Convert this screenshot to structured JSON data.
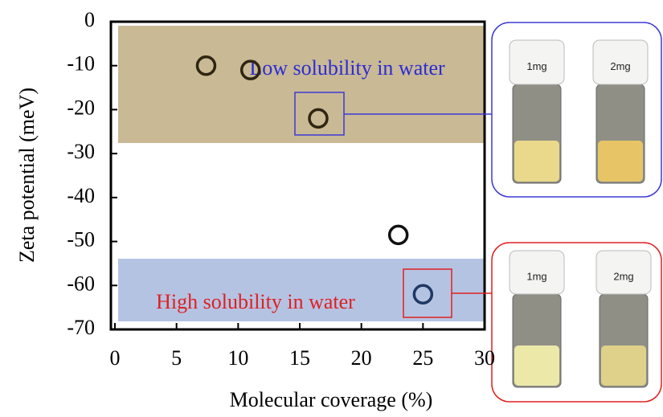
{
  "chart_data": {
    "type": "scatter",
    "x_label": "Molecular coverage (%)",
    "y_label": "Zeta potential (meV)",
    "series": [
      {
        "x": [
          7.4,
          11,
          16.5,
          23,
          25
        ],
        "values": [
          -10,
          -11,
          -22,
          -48.5,
          -62
        ],
        "colors": [
          "#2e2512",
          "#2e2512",
          "#2e2512",
          "#111111",
          "#1f3864"
        ]
      }
    ],
    "xlim": [
      0,
      30
    ],
    "xticks": [
      0,
      5,
      10,
      15,
      20,
      25,
      30
    ],
    "ylim": [
      -70,
      0
    ],
    "yticks": [
      0,
      -10,
      -20,
      -30,
      -40,
      -50,
      -60,
      -70
    ],
    "annotations": [
      {
        "text": "Low solubility in water",
        "color": "#2b2bd6"
      },
      {
        "text": "High solubility in water",
        "color": "#e02020"
      }
    ],
    "photo_labels": [
      [
        "1mg",
        "2mg"
      ],
      [
        "1mg",
        "2mg"
      ]
    ]
  }
}
